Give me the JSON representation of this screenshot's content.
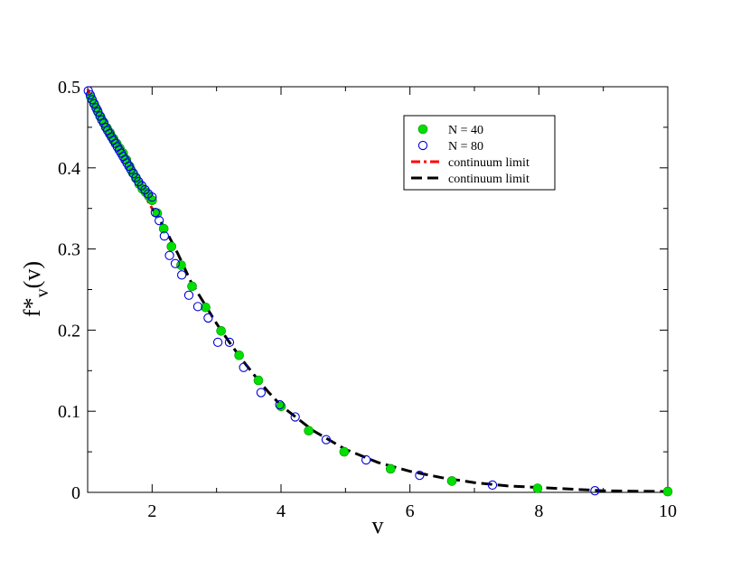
{
  "chart_data": {
    "type": "scatter",
    "xlabel": "v",
    "ylabel": "f*",
    "ylabel_sub": "v",
    "ylabel_arg": "(v)",
    "xlim": [
      1,
      10
    ],
    "ylim": [
      0,
      0.5
    ],
    "xticks": [
      2,
      4,
      6,
      8,
      10
    ],
    "yticks": [
      0,
      0.1,
      0.2,
      0.3,
      0.4,
      0.5
    ],
    "xtick_labels": [
      "2",
      "4",
      "6",
      "8",
      "10"
    ],
    "ytick_labels": [
      "0",
      "0.1",
      "0.2",
      "0.3",
      "0.4",
      "0.5"
    ],
    "grid": false,
    "legend_position": "top-right",
    "series": [
      {
        "name": "N = 40",
        "kind": "marker",
        "marker": "filled-circle",
        "color": "#00e000",
        "edge": "#008800",
        "x": [
          1.05,
          1.1,
          1.15,
          1.2,
          1.25,
          1.3,
          1.35,
          1.4,
          1.45,
          1.5,
          1.55,
          1.6,
          1.65,
          1.7,
          1.75,
          1.8,
          1.85,
          1.9,
          1.95,
          2.0,
          2.08,
          2.18,
          2.3,
          2.45,
          2.62,
          2.83,
          3.07,
          3.35,
          3.65,
          4.0,
          4.43,
          4.98,
          5.7,
          6.65,
          7.98,
          10.0
        ],
        "y": [
          0.487,
          0.479,
          0.471,
          0.463,
          0.456,
          0.449,
          0.443,
          0.436,
          0.43,
          0.424,
          0.418,
          0.41,
          0.402,
          0.394,
          0.387,
          0.38,
          0.374,
          0.37,
          0.365,
          0.36,
          0.344,
          0.325,
          0.303,
          0.28,
          0.254,
          0.228,
          0.199,
          0.169,
          0.138,
          0.106,
          0.076,
          0.05,
          0.029,
          0.014,
          0.005,
          0.001
        ]
      },
      {
        "name": "N = 80",
        "kind": "marker",
        "marker": "open-circle",
        "color": "#0000dd",
        "x": [
          1.01,
          1.04,
          1.07,
          1.1,
          1.13,
          1.16,
          1.19,
          1.22,
          1.25,
          1.28,
          1.31,
          1.34,
          1.37,
          1.4,
          1.43,
          1.46,
          1.49,
          1.52,
          1.55,
          1.58,
          1.61,
          1.64,
          1.67,
          1.71,
          1.75,
          1.79,
          1.84,
          1.89,
          1.94,
          2.0,
          2.05,
          2.11,
          2.19,
          2.27,
          2.36,
          2.46,
          2.57,
          2.71,
          2.87,
          3.02,
          3.2,
          3.42,
          3.69,
          3.98,
          4.22,
          4.7,
          5.32,
          6.15,
          7.28,
          8.87
        ],
        "y": [
          0.495,
          0.49,
          0.484,
          0.479,
          0.474,
          0.469,
          0.464,
          0.459,
          0.455,
          0.45,
          0.446,
          0.442,
          0.438,
          0.434,
          0.43,
          0.426,
          0.422,
          0.418,
          0.414,
          0.41,
          0.406,
          0.402,
          0.398,
          0.393,
          0.388,
          0.383,
          0.378,
          0.373,
          0.368,
          0.364,
          0.345,
          0.335,
          0.316,
          0.292,
          0.282,
          0.268,
          0.243,
          0.229,
          0.215,
          0.185,
          0.185,
          0.154,
          0.123,
          0.108,
          0.093,
          0.065,
          0.04,
          0.021,
          0.009,
          0.002
        ]
      },
      {
        "name": "continuum limit",
        "kind": "line",
        "style": "dash-dot",
        "color": "#ff0000",
        "x": [
          1.0,
          1.1,
          1.2,
          1.3,
          1.4,
          1.5,
          1.6,
          1.7,
          1.8,
          1.9,
          2.0
        ],
        "y": [
          0.497,
          0.479,
          0.463,
          0.448,
          0.434,
          0.421,
          0.407,
          0.393,
          0.379,
          0.364,
          0.35
        ]
      },
      {
        "name": "continuum limit",
        "kind": "line",
        "style": "dash",
        "color": "#000000",
        "x": [
          2.0,
          2.2,
          2.4,
          2.6,
          2.8,
          3.0,
          3.2,
          3.4,
          3.6,
          3.8,
          4.0,
          4.5,
          5.0,
          5.5,
          6.0,
          6.5,
          7.0,
          7.5,
          8.0,
          8.5,
          9.0,
          9.5,
          10.0
        ],
        "y": [
          0.35,
          0.325,
          0.294,
          0.26,
          0.234,
          0.208,
          0.185,
          0.163,
          0.143,
          0.124,
          0.107,
          0.076,
          0.053,
          0.037,
          0.026,
          0.018,
          0.012,
          0.008,
          0.006,
          0.004,
          0.002,
          0.0015,
          0.001
        ]
      }
    ]
  }
}
